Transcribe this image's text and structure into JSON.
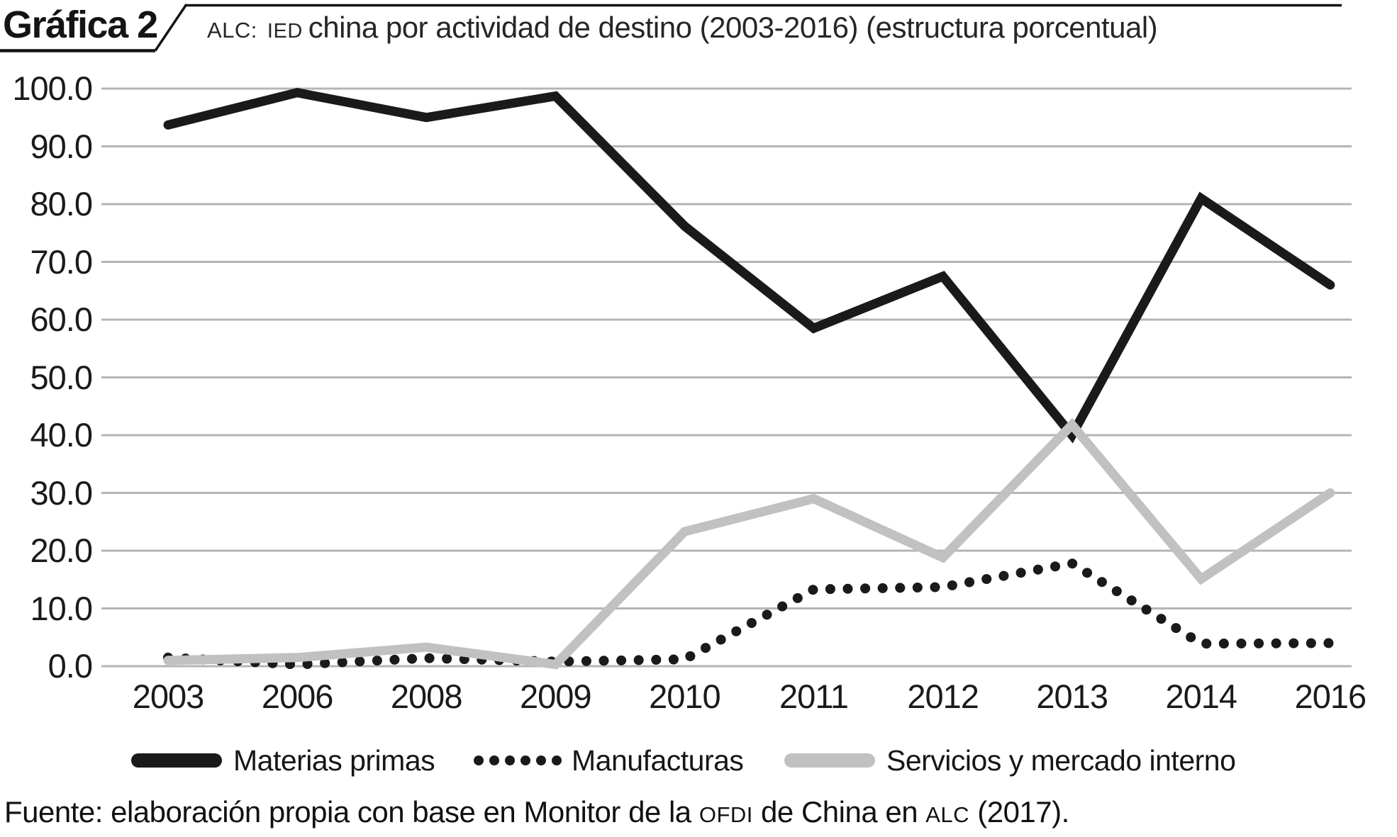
{
  "header": {
    "figure_label": "Gráfica 2",
    "subtitle_sc1": "ALC:",
    "subtitle_sc2": "IED",
    "subtitle_rest": "china por actividad de destino (2003-2016) (estructura porcentual)"
  },
  "chart_data": {
    "type": "line",
    "title": "ALC: IED china por actividad de destino (2003-2016) (estructura porcentual)",
    "categories": [
      "2003",
      "2006",
      "2008",
      "2009",
      "2010",
      "2011",
      "2012",
      "2013",
      "2014",
      "2016"
    ],
    "series": [
      {
        "name": "Materias primas",
        "style": "solid",
        "color": "#1a1a1a",
        "values": [
          93.7,
          99.3,
          95.0,
          98.7,
          76.2,
          58.5,
          67.5,
          40.0,
          81.0,
          66.0
        ]
      },
      {
        "name": "Manufacturas",
        "style": "dotted",
        "color": "#1a1a1a",
        "values": [
          1.5,
          0.3,
          1.4,
          0.8,
          1.2,
          13.3,
          13.7,
          17.8,
          3.9,
          4.0
        ]
      },
      {
        "name": "Servicios y mercado interno",
        "style": "solid",
        "color": "#c1c1c1",
        "values": [
          1.0,
          1.5,
          3.3,
          0.3,
          23.3,
          29.0,
          18.8,
          41.8,
          15.1,
          30.0
        ]
      }
    ],
    "xlabel": "",
    "ylabel": "",
    "ylim": [
      0,
      100
    ],
    "ytick_step": 10,
    "yticks": [
      "100.0",
      "90.0",
      "80.0",
      "70.0",
      "60.0",
      "50.0",
      "40.0",
      "30.0",
      "20.0",
      "10.0",
      "0.0"
    ],
    "grid": "horizontal",
    "gridline_color": "#b5b5b5",
    "legend_position": "bottom"
  },
  "source": {
    "part1": "Fuente: elaboración propia con base en Monitor de la ",
    "sc1": "OFDI",
    "part2": " de China en ",
    "sc2": "ALC",
    "part3": " (2017)."
  }
}
